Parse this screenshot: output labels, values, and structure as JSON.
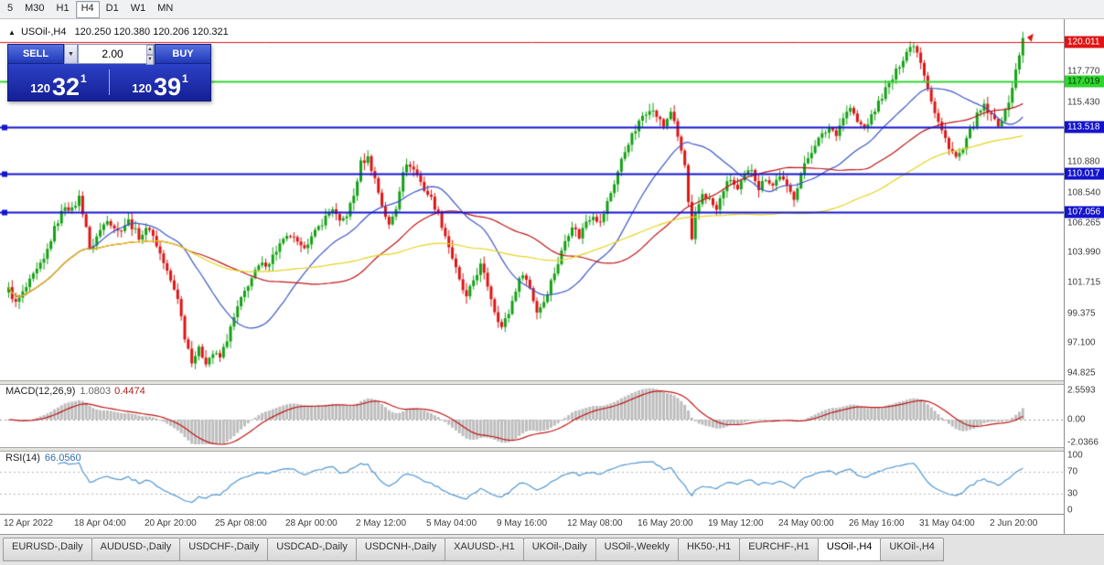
{
  "toolbar": {
    "timeframes": [
      "5",
      "M30",
      "H1",
      "H4",
      "D1",
      "W1",
      "MN"
    ],
    "active": "H4"
  },
  "chart_header": {
    "collapse_icon": "▲",
    "symbol": "USOil-,H4",
    "ohlc": "120.250 120.380 120.206 120.321"
  },
  "trade_panel": {
    "sell_label": "SELL",
    "buy_label": "BUY",
    "lot_size": "2.00",
    "dropdown_icon": "▼",
    "spinner_up_icon": "▲",
    "spinner_down_icon": "▼",
    "bid": {
      "prefix": "120",
      "big": "32",
      "sup": "1"
    },
    "ask": {
      "prefix": "120",
      "big": "39",
      "sup": "1"
    }
  },
  "indicators": {
    "macd_label": "MACD(12,26,9)",
    "macd_value_main": "1.0803",
    "macd_value_signal": "0.4474",
    "rsi_label": "RSI(14)",
    "rsi_value": "66.0560"
  },
  "tabbar": {
    "tabs": [
      {
        "label": "EURUSD-,Daily"
      },
      {
        "label": "AUDUSD-,Daily"
      },
      {
        "label": "USDCHF-,Daily"
      },
      {
        "label": "USDCAD-,Daily"
      },
      {
        "label": "USDCNH-,Daily"
      },
      {
        "label": "XAUUSD-,H1"
      },
      {
        "label": "UKOil-,Daily"
      },
      {
        "label": "USOil-,Weekly"
      },
      {
        "label": "HK50-,H1"
      },
      {
        "label": "EURCHF-,H1"
      },
      {
        "label": "USOil-,H4",
        "active": true
      },
      {
        "label": "UKOil-,H4"
      }
    ]
  },
  "chart_data": {
    "type": "candlestick",
    "symbol": "USOil-",
    "timeframe": "H4",
    "price": {
      "bars": 289,
      "left": 8,
      "spacing": 3.85,
      "ylim": [
        94.27,
        121.82
      ],
      "up_color": "#14a014",
      "down_color": "#dd1414",
      "anchors": [
        [
          0,
          101.2
        ],
        [
          2,
          100.1
        ],
        [
          4,
          100.9
        ],
        [
          7,
          102.2
        ],
        [
          10,
          103.4
        ],
        [
          13,
          105.8
        ],
        [
          16,
          107.6
        ],
        [
          18,
          107.2
        ],
        [
          20,
          108.2
        ],
        [
          22,
          106.0
        ],
        [
          23,
          104.1
        ],
        [
          25,
          105.2
        ],
        [
          28,
          106.6
        ],
        [
          31,
          105.6
        ],
        [
          34,
          106.4
        ],
        [
          37,
          105.2
        ],
        [
          40,
          105.9
        ],
        [
          43,
          103.9
        ],
        [
          46,
          101.8
        ],
        [
          48,
          100.6
        ],
        [
          50,
          97.6
        ],
        [
          52,
          95.8
        ],
        [
          54,
          96.6
        ],
        [
          56,
          95.7
        ],
        [
          58,
          96.3
        ],
        [
          60,
          96.0
        ],
        [
          62,
          97.4
        ],
        [
          65,
          99.8
        ],
        [
          68,
          101.6
        ],
        [
          71,
          102.9
        ],
        [
          74,
          103.3
        ],
        [
          77,
          104.6
        ],
        [
          80,
          105.3
        ],
        [
          83,
          104.3
        ],
        [
          86,
          105.1
        ],
        [
          89,
          106.3
        ],
        [
          92,
          107.4
        ],
        [
          94,
          106.2
        ],
        [
          96,
          106.9
        ],
        [
          98,
          108.3
        ],
        [
          100,
          110.8
        ],
        [
          102,
          111.2
        ],
        [
          104,
          109.6
        ],
        [
          106,
          107.6
        ],
        [
          108,
          106.0
        ],
        [
          110,
          107.4
        ],
        [
          112,
          110.3
        ],
        [
          114,
          110.7
        ],
        [
          116,
          109.9
        ],
        [
          118,
          108.8
        ],
        [
          120,
          108.1
        ],
        [
          122,
          106.9
        ],
        [
          124,
          105.3
        ],
        [
          126,
          103.6
        ],
        [
          128,
          101.8
        ],
        [
          130,
          100.5
        ],
        [
          132,
          101.9
        ],
        [
          134,
          103.0
        ],
        [
          136,
          101.5
        ],
        [
          138,
          99.6
        ],
        [
          140,
          98.3
        ],
        [
          142,
          99.4
        ],
        [
          144,
          101.2
        ],
        [
          146,
          102.5
        ],
        [
          148,
          101.3
        ],
        [
          150,
          99.5
        ],
        [
          152,
          100.3
        ],
        [
          154,
          101.8
        ],
        [
          156,
          103.2
        ],
        [
          158,
          104.9
        ],
        [
          160,
          106.1
        ],
        [
          162,
          105.2
        ],
        [
          164,
          106.4
        ],
        [
          166,
          106.9
        ],
        [
          168,
          106.2
        ],
        [
          170,
          107.8
        ],
        [
          172,
          109.3
        ],
        [
          174,
          111.0
        ],
        [
          176,
          112.4
        ],
        [
          178,
          113.3
        ],
        [
          180,
          114.4
        ],
        [
          182,
          115.0
        ],
        [
          184,
          114.4
        ],
        [
          186,
          113.6
        ],
        [
          188,
          114.8
        ],
        [
          190,
          112.8
        ],
        [
          192,
          110.6
        ],
        [
          194,
          104.8
        ],
        [
          195,
          106.8
        ],
        [
          197,
          108.5
        ],
        [
          199,
          108.0
        ],
        [
          201,
          107.2
        ],
        [
          203,
          108.8
        ],
        [
          205,
          109.6
        ],
        [
          207,
          108.7
        ],
        [
          209,
          109.8
        ],
        [
          211,
          110.4
        ],
        [
          213,
          108.9
        ],
        [
          215,
          109.7
        ],
        [
          217,
          109.1
        ],
        [
          219,
          109.9
        ],
        [
          221,
          108.9
        ],
        [
          223,
          108.2
        ],
        [
          225,
          110.0
        ],
        [
          227,
          111.2
        ],
        [
          229,
          112.3
        ],
        [
          231,
          112.9
        ],
        [
          233,
          113.5
        ],
        [
          235,
          113.1
        ],
        [
          237,
          114.3
        ],
        [
          239,
          115.0
        ],
        [
          241,
          113.9
        ],
        [
          243,
          113.5
        ],
        [
          245,
          114.3
        ],
        [
          247,
          115.4
        ],
        [
          249,
          116.4
        ],
        [
          251,
          117.2
        ],
        [
          253,
          118.3
        ],
        [
          255,
          119.3
        ],
        [
          257,
          119.9
        ],
        [
          259,
          118.6
        ],
        [
          261,
          116.6
        ],
        [
          263,
          114.6
        ],
        [
          265,
          113.2
        ],
        [
          267,
          112.1
        ],
        [
          269,
          111.2
        ],
        [
          271,
          111.8
        ],
        [
          273,
          113.2
        ],
        [
          275,
          114.4
        ],
        [
          277,
          115.1
        ],
        [
          279,
          114.3
        ],
        [
          281,
          113.8
        ],
        [
          283,
          114.6
        ],
        [
          285,
          116.6
        ],
        [
          287,
          119.0
        ],
        [
          288,
          120.32
        ]
      ],
      "ma": [
        {
          "period": 24,
          "color": "#3c55c8"
        },
        {
          "period": 52,
          "color": "#c01414"
        },
        {
          "period": 110,
          "color": "#e6d31c"
        }
      ],
      "lines": [
        {
          "price": 120.011,
          "color": "#e01414",
          "width": 1,
          "handle": false
        },
        {
          "price": 117.019,
          "color": "#30d430",
          "width": 2,
          "handle": false
        },
        {
          "price": 113.518,
          "color": "#1414cc",
          "width": 2,
          "handle": true
        },
        {
          "price": 110.017,
          "color": "#1414cc",
          "width": 2,
          "handle": true
        },
        {
          "price": 107.056,
          "color": "#1414cc",
          "width": 2,
          "handle": true
        }
      ]
    },
    "price_axis": {
      "ticks": [
        {
          "label": "117.770",
          "price": 117.77
        },
        {
          "label": "115.430",
          "price": 115.43
        },
        {
          "label": "110.880",
          "price": 110.88
        },
        {
          "label": "108.540",
          "price": 108.54
        },
        {
          "label": "106.265",
          "price": 106.265
        },
        {
          "label": "103.990",
          "price": 103.99
        },
        {
          "label": "101.715",
          "price": 101.715
        },
        {
          "label": "99.375",
          "price": 99.375
        },
        {
          "label": "97.100",
          "price": 97.1
        },
        {
          "label": "94.825",
          "price": 94.825
        }
      ],
      "badges": [
        {
          "label": "120.011",
          "price": 120.011,
          "bg": "#e01414",
          "fg": "#ffffff"
        },
        {
          "label": "117.019",
          "price": 117.019,
          "bg": "#30d430",
          "fg": "#073907"
        },
        {
          "label": "113.518",
          "price": 113.518,
          "bg": "#1414cc",
          "fg": "#ffffff"
        },
        {
          "label": "110.017",
          "price": 110.017,
          "bg": "#1414cc",
          "fg": "#ffffff"
        },
        {
          "label": "107.056",
          "price": 107.056,
          "bg": "#1414cc",
          "fg": "#ffffff"
        }
      ]
    },
    "macd": {
      "fast": 12,
      "slow": 26,
      "signal": 9,
      "hist_color": "#bdbdbd",
      "signal_color": "#c01414",
      "ticks": [
        {
          "label": "2.5593",
          "value": 2.5593
        },
        {
          "label": "0.00",
          "value": 0
        },
        {
          "label": "-2.0366",
          "value": -2.0366
        }
      ]
    },
    "rsi": {
      "period": 14,
      "color": "#4f96d2",
      "levels": [
        70,
        30
      ],
      "ticks": [
        {
          "label": "100",
          "value": 100
        },
        {
          "label": "70",
          "value": 70
        },
        {
          "label": "30",
          "value": 30
        },
        {
          "label": "0",
          "value": 0
        }
      ]
    },
    "time_labels": [
      {
        "bar": 0,
        "text": "12 Apr 2022"
      },
      {
        "bar": 20,
        "text": "18 Apr 04:00"
      },
      {
        "bar": 40,
        "text": "20 Apr 20:00"
      },
      {
        "bar": 60,
        "text": "25 Apr 08:00"
      },
      {
        "bar": 80,
        "text": "28 Apr 00:00"
      },
      {
        "bar": 100,
        "text": "2 May 12:00"
      },
      {
        "bar": 120,
        "text": "5 May 04:00"
      },
      {
        "bar": 140,
        "text": "9 May 16:00"
      },
      {
        "bar": 160,
        "text": "12 May 08:00"
      },
      {
        "bar": 180,
        "text": "16 May 20:00"
      },
      {
        "bar": 200,
        "text": "19 May 12:00"
      },
      {
        "bar": 220,
        "text": "24 May 00:00"
      },
      {
        "bar": 240,
        "text": "26 May 16:00"
      },
      {
        "bar": 260,
        "text": "31 May 04:00"
      },
      {
        "bar": 280,
        "text": "2 Jun 20:00"
      }
    ]
  }
}
